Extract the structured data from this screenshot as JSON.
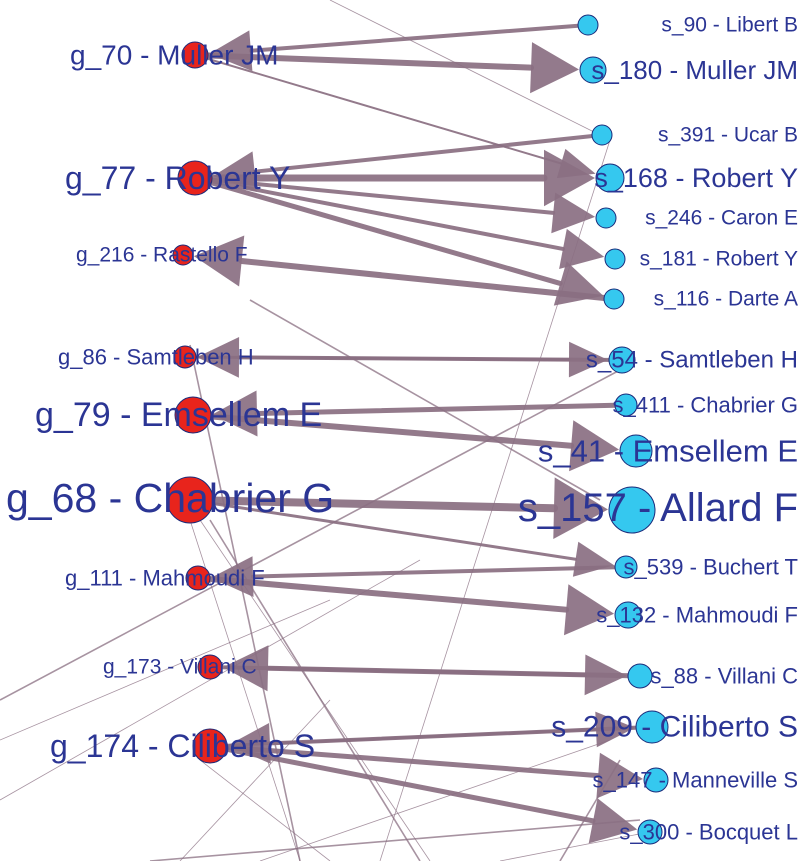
{
  "colors": {
    "left_node": "#e8241c",
    "right_node": "#35c8ef",
    "node_stroke": "#1a2a7a",
    "label": "#2b3594",
    "edge": "#8a6f82"
  },
  "left_nodes": [
    {
      "id": "g70",
      "label": "g_70 - Muller JM"
    },
    {
      "id": "g77",
      "label": "g_77 - Robert Y"
    },
    {
      "id": "g216",
      "label": "g_216 - Rastello F"
    },
    {
      "id": "g86",
      "label": "g_86 - Samtleben H"
    },
    {
      "id": "g79",
      "label": "g_79 - Emsellem E"
    },
    {
      "id": "g68",
      "label": "g_68 - Chabrier G"
    },
    {
      "id": "g111",
      "label": "g_111 - Mahmoudi F"
    },
    {
      "id": "g173",
      "label": "g_173 - Villani C"
    },
    {
      "id": "g174",
      "label": "g_174 - Ciliberto S"
    }
  ],
  "right_nodes": [
    {
      "id": "s90",
      "label": "s_90 - Libert B"
    },
    {
      "id": "s180",
      "label": "s_180 - Muller JM"
    },
    {
      "id": "s391",
      "label": "s_391 - Ucar B"
    },
    {
      "id": "s168",
      "label": "s_168 - Robert Y"
    },
    {
      "id": "s246",
      "label": "s_246 - Caron E"
    },
    {
      "id": "s181",
      "label": "s_181 - Robert Y"
    },
    {
      "id": "s116",
      "label": "s_116 - Darte A"
    },
    {
      "id": "s54",
      "label": "s_54 - Samtleben H"
    },
    {
      "id": "s411",
      "label": "s_411 - Chabrier G"
    },
    {
      "id": "s41",
      "label": "s_41 - Emsellem E"
    },
    {
      "id": "s157",
      "label": "s_157 - Allard F"
    },
    {
      "id": "s539",
      "label": "s_539 - Buchert T"
    },
    {
      "id": "s132",
      "label": "s_132 - Mahmoudi F"
    },
    {
      "id": "s88",
      "label": "s_88 - Villani C"
    },
    {
      "id": "s209",
      "label": "s_209 - Ciliberto S"
    },
    {
      "id": "s147",
      "label": "s_147 - Manneville S"
    },
    {
      "id": "s300",
      "label": "s_300 - Bocquet L"
    }
  ],
  "edges": [
    {
      "from": "s90",
      "to": "g70"
    },
    {
      "from": "g70",
      "to": "s180"
    },
    {
      "from": "g70",
      "to": "s168"
    },
    {
      "from": "s391",
      "to": "g77"
    },
    {
      "from": "g77",
      "to": "s168"
    },
    {
      "from": "g77",
      "to": "s246"
    },
    {
      "from": "g77",
      "to": "s181"
    },
    {
      "from": "g77",
      "to": "s116"
    },
    {
      "from": "s116",
      "to": "g216"
    },
    {
      "from": "s54",
      "to": "g86"
    },
    {
      "from": "g86",
      "to": "s54"
    },
    {
      "from": "s411",
      "to": "g79"
    },
    {
      "from": "g79",
      "to": "s41"
    },
    {
      "from": "g68",
      "to": "s157"
    },
    {
      "from": "g68",
      "to": "s539"
    },
    {
      "from": "s539",
      "to": "g111"
    },
    {
      "from": "g111",
      "to": "s132"
    },
    {
      "from": "s88",
      "to": "g173"
    },
    {
      "from": "g173",
      "to": "s88"
    },
    {
      "from": "s209",
      "to": "g174"
    },
    {
      "from": "g174",
      "to": "s147"
    },
    {
      "from": "g174",
      "to": "s300"
    },
    {
      "from": "g174",
      "to": "s209"
    }
  ]
}
